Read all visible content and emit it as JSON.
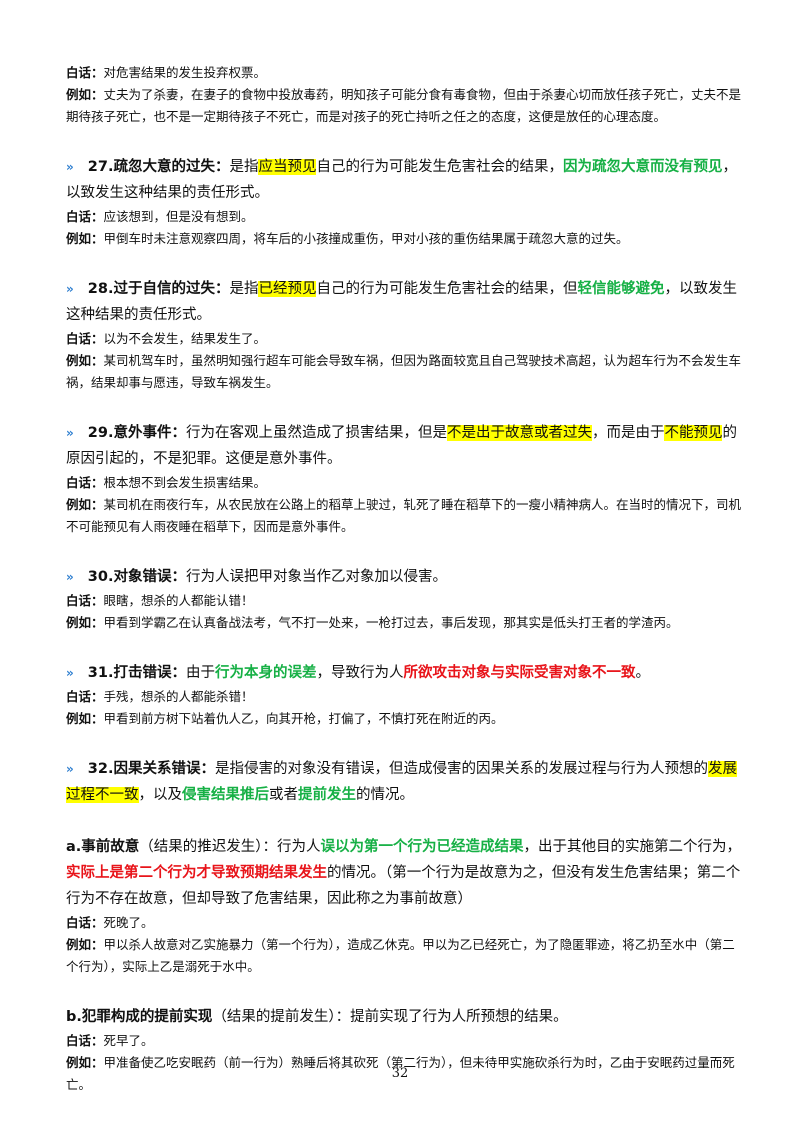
{
  "intro": {
    "plain_label": "白话：",
    "plain": "对危害结果的发生投弃权票。",
    "example_label": "例如：",
    "example": "丈夫为了杀妻，在妻子的食物中投放毒药，明知孩子可能分食有毒食物，但由于杀妻心切而放任孩子死亡，丈夫不是期待孩子死亡，也不是一定期待孩子不死亡，而是对孩子的死亡持听之任之的态度，这便是放任的心理态度。"
  },
  "sections": [
    {
      "heading": "27.疏忽大意的过失：",
      "definition": [
        "是指",
        "应当预见",
        "自己的行为可能发生危害社会的结果，",
        "因为疏忽大意而没有预见",
        "，以致发生这种结果的责任形式。"
      ],
      "plain_label": "白话：",
      "plain": "应该想到，但是没有想到。",
      "example_label": "例如：",
      "example": "甲倒车时未注意观察四周，将车后的小孩撞成重伤，甲对小孩的重伤结果属于疏忽大意的过失。"
    },
    {
      "heading": "28.过于自信的过失：",
      "definition": [
        "是指",
        "已经预见",
        "自己的行为可能发生危害社会的结果，但",
        "轻信能够避免",
        "，以致发生这种结果的责任形式。"
      ],
      "plain_label": "白话：",
      "plain": "以为不会发生，结果发生了。",
      "example_label": "例如：",
      "example": "某司机驾车时，虽然明知强行超车可能会导致车祸，但因为路面较宽且自己驾驶技术高超，认为超车行为不会发生车祸，结果却事与愿违，导致车祸发生。"
    },
    {
      "heading": "29.意外事件：",
      "definition": [
        "行为在客观上虽然造成了损害结果，但是",
        "不是出于故意或者过失",
        "，而是由于",
        "不能预见",
        "的原因引起的，不是犯罪。这便是意外事件。"
      ],
      "plain_label": "白话：",
      "plain": "根本想不到会发生损害结果。",
      "example_label": "例如：",
      "example": "某司机在雨夜行车，从农民放在公路上的稻草上驶过，轧死了睡在稻草下的一瘦小精神病人。在当时的情况下，司机不可能预见有人雨夜睡在稻草下，因而是意外事件。"
    },
    {
      "heading": "30.对象错误：",
      "definition": [
        "行为人误把甲对象当作乙对象加以侵害。"
      ],
      "plain_label": "白话：",
      "plain": "眼瞎，想杀的人都能认错！",
      "example_label": "例如：",
      "example": "甲看到学霸乙在认真备战法考，气不打一处来，一枪打过去，事后发现，那其实是低头打王者的学渣丙。"
    },
    {
      "heading": "31.打击错误：",
      "definition": [
        "由于",
        "行为本身的误差",
        "，导致行为人",
        "所欲攻击对象与实际受害对象不一致",
        "。"
      ],
      "plain_label": "白话：",
      "plain": "手残，想杀的人都能杀错！",
      "example_label": "例如：",
      "example": "甲看到前方树下站着仇人乙，向其开枪，打偏了，不慎打死在附近的丙。"
    },
    {
      "heading": "32.因果关系错误：",
      "definition": [
        "是指侵害的对象没有错误，但造成侵害的因果关系的发展过程与行为人预想的",
        "发展过程不一致",
        "，以及",
        "侵害结果推后",
        "或者",
        "提前发生",
        "的情况。"
      ]
    }
  ],
  "subsections": [
    {
      "heading": "a.事前故意",
      "definition": [
        "（结果的推迟发生）：行为人",
        "误以为第一个行为已经造成结果",
        "，出于其他目的实施第二个行为，",
        "实际上是第二个行为才导致预期结果发生",
        "的情况。（第一个行为是故意为之，但没有发生危害结果；第二个行为不存在故意，但却导致了危害结果，因此称之为事前故意）"
      ],
      "plain_label": "白话：",
      "plain": "死晚了。",
      "example_label": "例如：",
      "example": "甲以杀人故意对乙实施暴力（第一个行为），造成乙休克。甲以为乙已经死亡，为了隐匿罪迹，将乙扔至水中（第二个行为），实际上乙是溺死于水中。"
    },
    {
      "heading": "b.犯罪构成的提前实现",
      "definition": [
        "（结果的提前发生）：提前实现了行为人所预想的结果。"
      ],
      "plain_label": "白话：",
      "plain": "死早了。",
      "example_label": "例如：",
      "example": "甲准备使乙吃安眠药（前一行为）熟睡后将其砍死（第二行为），但未待甲实施砍杀行为时，乙由于安眠药过量而死亡。"
    }
  ],
  "page_number": "32"
}
